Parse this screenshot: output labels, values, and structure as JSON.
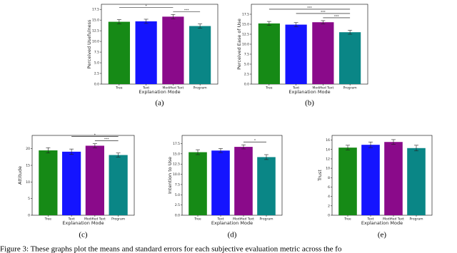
{
  "chart_data": [
    {
      "type": "bar",
      "panel_label": "(a)",
      "ylabel": "Perceived Usefulness",
      "xlabel": "Explanation Mode",
      "categories": [
        "Tree",
        "Text",
        "Modified Text",
        "Program"
      ],
      "values": [
        14.6,
        14.7,
        15.8,
        13.6
      ],
      "errors": [
        0.5,
        0.5,
        0.5,
        0.5
      ],
      "colors": [
        "#168a16",
        "#1414ff",
        "#8a0a8a",
        "#0a8686"
      ],
      "ylim": [
        0,
        18.7
      ],
      "yticks": [
        {
          "value": 0,
          "label": "0.0"
        },
        {
          "value": 2.5,
          "label": "2.5"
        },
        {
          "value": 5,
          "label": "5.0"
        },
        {
          "value": 7.5,
          "label": "7.5"
        },
        {
          "value": 10,
          "label": "10.0"
        },
        {
          "value": 12.5,
          "label": "12.5"
        },
        {
          "value": 15,
          "label": "15.0"
        },
        {
          "value": 17.5,
          "label": "17.5"
        }
      ],
      "significance": [
        {
          "between": [
            "Modified Text",
            "Program"
          ],
          "label": "***"
        },
        {
          "between": [
            "Tree",
            "Modified Text"
          ],
          "label": "*"
        }
      ]
    },
    {
      "type": "bar",
      "panel_label": "(b)",
      "ylabel": "Perceived Ease of Use",
      "xlabel": "Explanation Mode",
      "categories": [
        "Tree",
        "Text",
        "Modified Text",
        "Program"
      ],
      "values": [
        15.2,
        14.9,
        15.5,
        13.0
      ],
      "errors": [
        0.5,
        0.5,
        0.4,
        0.5
      ],
      "colors": [
        "#168a16",
        "#1414ff",
        "#8a0a8a",
        "#0a8686"
      ],
      "ylim": [
        0,
        20
      ],
      "yticks": [
        {
          "value": 0,
          "label": "0.0"
        },
        {
          "value": 2.5,
          "label": "2.5"
        },
        {
          "value": 5,
          "label": "5.0"
        },
        {
          "value": 7.5,
          "label": "7.5"
        },
        {
          "value": 10,
          "label": "10.0"
        },
        {
          "value": 12.5,
          "label": "12.5"
        },
        {
          "value": 15,
          "label": "15.0"
        },
        {
          "value": 17.5,
          "label": "17.5"
        }
      ],
      "significance": [
        {
          "between": [
            "Modified Text",
            "Program"
          ],
          "label": "***"
        },
        {
          "between": [
            "Text",
            "Program"
          ],
          "label": "***"
        },
        {
          "between": [
            "Tree",
            "Program"
          ],
          "label": "***"
        }
      ]
    },
    {
      "type": "bar",
      "panel_label": "(c)",
      "ylabel": "Attitude",
      "xlabel": "Explanation Mode",
      "categories": [
        "Tree",
        "Text",
        "Modified Text",
        "Program"
      ],
      "values": [
        19.5,
        19.1,
        20.9,
        18.1
      ],
      "errors": [
        0.8,
        0.8,
        0.6,
        0.6
      ],
      "colors": [
        "#168a16",
        "#1414ff",
        "#8a0a8a",
        "#0a8686"
      ],
      "ylim": [
        0,
        24
      ],
      "yticks": [
        0,
        5,
        10,
        15,
        20
      ],
      "significance": [
        {
          "between": [
            "Modified Text",
            "Program"
          ],
          "label": "***"
        },
        {
          "between": [
            "Text",
            "Program"
          ],
          "label": "*"
        }
      ]
    },
    {
      "type": "bar",
      "panel_label": "(d)",
      "ylabel": "Intention to Use",
      "xlabel": "Explanation Mode",
      "categories": [
        "Tree",
        "Text",
        "Modified Text",
        "Program"
      ],
      "values": [
        15.4,
        15.8,
        16.7,
        14.2
      ],
      "errors": [
        0.6,
        0.5,
        0.5,
        0.6
      ],
      "colors": [
        "#168a16",
        "#1414ff",
        "#8a0a8a",
        "#0a8686"
      ],
      "ylim": [
        0,
        19.5
      ],
      "yticks": [
        {
          "value": 0,
          "label": "0.0"
        },
        {
          "value": 2.5,
          "label": "2.5"
        },
        {
          "value": 5,
          "label": "5.0"
        },
        {
          "value": 7.5,
          "label": "7.5"
        },
        {
          "value": 10,
          "label": "10.0"
        },
        {
          "value": 12.5,
          "label": "12.5"
        },
        {
          "value": 15,
          "label": "15.0"
        },
        {
          "value": 17.5,
          "label": "17.5"
        }
      ],
      "significance": [
        {
          "between": [
            "Modified Text",
            "Program"
          ],
          "label": "*"
        }
      ]
    },
    {
      "type": "bar",
      "panel_label": "(e)",
      "ylabel": "Trust",
      "xlabel": "Explanation Mode",
      "categories": [
        "Tree",
        "Text",
        "Modified Text",
        "Program"
      ],
      "values": [
        14.4,
        15.0,
        15.6,
        14.3
      ],
      "errors": [
        0.5,
        0.6,
        0.5,
        0.6
      ],
      "colors": [
        "#168a16",
        "#1414ff",
        "#8a0a8a",
        "#0a8686"
      ],
      "ylim": [
        0,
        17
      ],
      "yticks": [
        0,
        2,
        4,
        6,
        8,
        10,
        12,
        14,
        16
      ],
      "significance": []
    }
  ],
  "caption": "Figure 3: These graphs plot the means and standard errors for each subjective evaluation metric across the fo"
}
